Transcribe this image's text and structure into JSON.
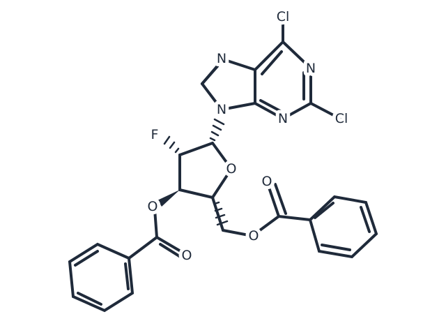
{
  "atoms": {
    "cl_top": "Cl",
    "n1": "N",
    "n3": "N",
    "cl_right": "Cl",
    "n7": "N",
    "n9": "N",
    "f": "F",
    "o_ring": "O",
    "o_3": "O",
    "o_carbonyl_left": "O",
    "o_5": "O",
    "o_carbonyl_right": "O"
  }
}
